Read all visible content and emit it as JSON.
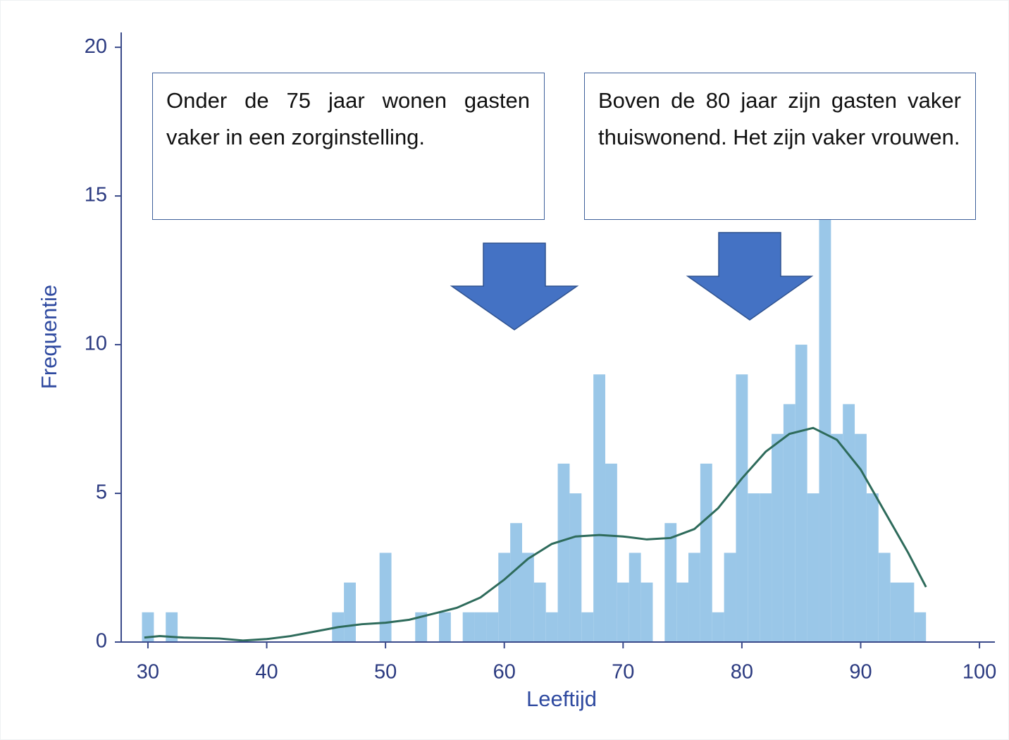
{
  "chart_data": {
    "type": "histogram",
    "xlabel": "Leeftijd",
    "ylabel": "Frequentie",
    "bins": [
      29.5,
      30.5,
      31.5,
      32.5,
      33.5,
      34.5,
      35.5,
      36.5,
      37.5,
      38.5,
      39.5,
      40.5,
      41.5,
      42.5,
      43.5,
      44.5,
      45.5,
      46.5,
      47.5,
      48.5,
      49.5,
      50.5,
      51.5,
      52.5,
      53.5,
      54.5,
      55.5,
      56.5,
      57.5,
      58.5,
      59.5,
      60.5,
      61.5,
      62.5,
      63.5,
      64.5,
      65.5,
      66.5,
      67.5,
      68.5,
      69.5,
      70.5,
      71.5,
      72.5,
      73.5,
      74.5,
      75.5,
      76.5,
      77.5,
      78.5,
      79.5,
      80.5,
      81.5,
      82.5,
      83.5,
      84.5,
      85.5,
      86.5,
      87.5,
      88.5,
      89.5,
      90.5,
      91.5,
      92.5,
      93.5,
      94.5,
      95.5
    ],
    "counts": [
      1,
      0,
      1,
      0,
      0,
      0,
      0,
      0,
      0,
      0,
      0,
      0,
      0,
      0,
      0,
      0,
      1,
      2,
      0,
      0,
      3,
      0,
      0,
      1,
      0,
      1,
      0,
      1,
      1,
      1,
      3,
      4,
      3,
      2,
      1,
      6,
      5,
      1,
      9,
      6,
      2,
      3,
      2,
      0,
      4,
      2,
      3,
      6,
      1,
      3,
      9,
      5,
      5,
      7,
      8,
      10,
      5,
      16,
      7,
      8,
      7,
      5,
      3,
      2,
      2,
      1
    ],
    "color": "#9ac7e8",
    "density": {
      "color": "#2e6b5b",
      "x": [
        29.7,
        31,
        33,
        36,
        38,
        40,
        42,
        44,
        46,
        48,
        50,
        52,
        54,
        56,
        58,
        60,
        62,
        64,
        66,
        68,
        70,
        72,
        74,
        76,
        78,
        80,
        82,
        84,
        86,
        88,
        90,
        92,
        94,
        95.5
      ],
      "values": [
        0.15,
        0.2,
        0.15,
        0.12,
        0.05,
        0.1,
        0.2,
        0.35,
        0.5,
        0.6,
        0.65,
        0.75,
        0.95,
        1.15,
        1.5,
        2.1,
        2.8,
        3.3,
        3.55,
        3.6,
        3.55,
        3.45,
        3.5,
        3.8,
        4.5,
        5.5,
        6.4,
        7.0,
        7.2,
        6.8,
        5.8,
        4.4,
        3.0,
        1.85
      ]
    },
    "xlim": [
      27.75,
      101.3
    ],
    "xticks": [
      30,
      40,
      50,
      60,
      70,
      80,
      90,
      100
    ],
    "ylim": [
      0,
      20.5
    ],
    "yticks": [
      0,
      5,
      10,
      15,
      20
    ],
    "annotations": [
      "Onder de 75 jaar wonen gasten vaker in een zorginstelling.",
      "Boven de 80 jaar zijn gasten vaker thuiswonend. Het zijn vaker vrouwen."
    ]
  }
}
